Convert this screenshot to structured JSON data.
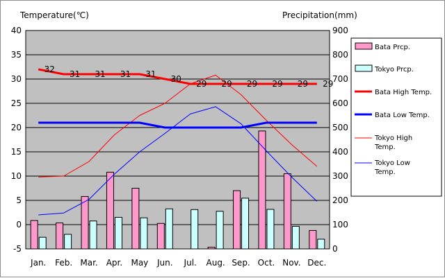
{
  "chart_data": {
    "type": "bar",
    "categories": [
      "Jan.",
      "Feb.",
      "Mar.",
      "Apr.",
      "May",
      "Jun.",
      "Jul.",
      "Aug.",
      "Sep.",
      "Oct.",
      "Nov.",
      "Dec."
    ],
    "y_left": {
      "label": "Temperature(℃)",
      "min": -5,
      "max": 40,
      "step": 5
    },
    "y_right": {
      "label": "Precipitation(mm)",
      "min": 0,
      "max": 900,
      "step": 100
    },
    "grid": true,
    "legend_position": "right",
    "bar_series": [
      {
        "name": "Bata Prcp.",
        "axis": "right",
        "color": "#ff99cc",
        "values": [
          117,
          107,
          216,
          316,
          250,
          105,
          0,
          7,
          240,
          486,
          310,
          76
        ]
      },
      {
        "name": "Tokyo Prcp.",
        "axis": "right",
        "color": "#ccffff",
        "values": [
          48,
          60,
          115,
          130,
          128,
          165,
          162,
          155,
          209,
          163,
          93,
          40
        ]
      }
    ],
    "line_series": [
      {
        "name": "Bata High Temp.",
        "axis": "left",
        "color": "#ff0000",
        "width": 3,
        "values": [
          32,
          31,
          31,
          31,
          31,
          30,
          29,
          29,
          29,
          29,
          29,
          29
        ],
        "labels": [
          "32",
          "31",
          "31",
          "31",
          "31",
          "30",
          "29",
          "29",
          "29",
          "29",
          "29",
          "29"
        ]
      },
      {
        "name": "Bata Low Temp.",
        "axis": "left",
        "color": "#0000ff",
        "width": 3,
        "values": [
          21,
          21,
          21,
          21,
          21,
          20,
          20,
          20,
          20,
          21,
          21,
          21
        ]
      },
      {
        "name": "Tokyo High Temp.",
        "axis": "left",
        "color": "#ff0000",
        "width": 1,
        "values": [
          9.8,
          10,
          13,
          18.5,
          22.5,
          25,
          29,
          30.8,
          26.8,
          21.5,
          16.5,
          12
        ]
      },
      {
        "name": "Tokyo Low Temp.",
        "axis": "left",
        "color": "#0000ff",
        "width": 1,
        "values": [
          2,
          2.4,
          5.2,
          10.4,
          15,
          18.8,
          22.8,
          24.3,
          20.8,
          15.2,
          9.8,
          4.8
        ]
      }
    ]
  }
}
